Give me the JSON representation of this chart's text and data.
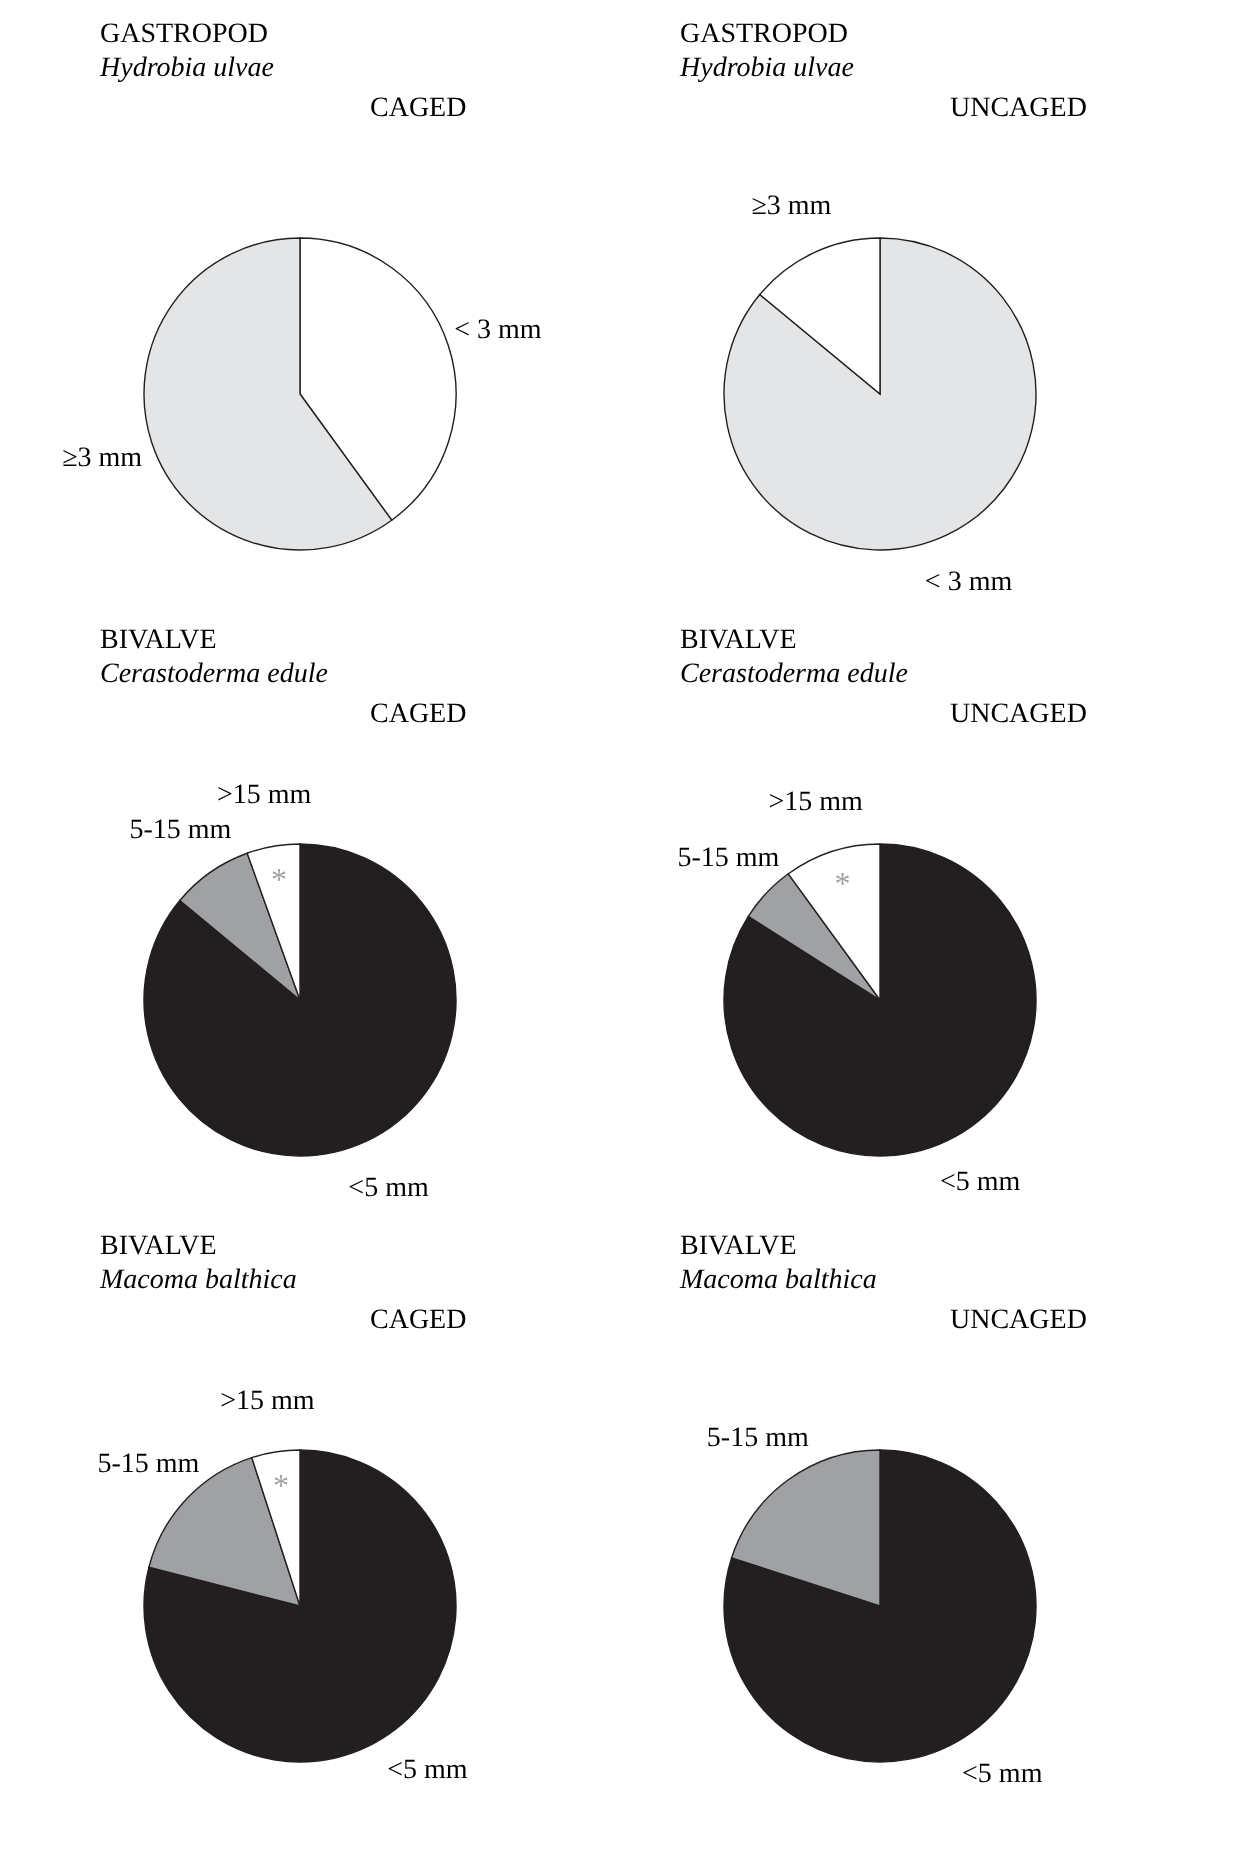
{
  "chart_data": [
    {
      "type": "pie",
      "title": "GASTROPOD",
      "subtitle": "Hydrobia ulvae",
      "annotations": [
        "CAGED"
      ],
      "categories": [
        "< 3 mm",
        "≥3 mm"
      ],
      "values": [
        40,
        60
      ],
      "colors": [
        "#ffffff",
        "#e4e5e7"
      ]
    },
    {
      "type": "pie",
      "title": "GASTROPOD",
      "subtitle": "Hydrobia ulvae",
      "annotations": [
        "UNCAGED"
      ],
      "categories": [
        "< 3 mm",
        "≥3 mm"
      ],
      "values": [
        86,
        14
      ],
      "colors": [
        "#e4e5e7",
        "#ffffff"
      ]
    },
    {
      "type": "pie",
      "title": "BIVALVE",
      "subtitle": "Cerastoderma edule",
      "annotations": [
        "CAGED",
        {
          "text": "*",
          "x": ">15 mm"
        }
      ],
      "categories": [
        "<5 mm",
        "5-15 mm",
        ">15 mm"
      ],
      "values": [
        86,
        8.5,
        5.5
      ],
      "colors": [
        "#231f20",
        "#a0a1a4",
        "#ffffff"
      ]
    },
    {
      "type": "pie",
      "title": "BIVALVE",
      "subtitle": "Cerastoderma edule",
      "annotations": [
        "UNCAGED",
        {
          "text": "*",
          "x": ">15 mm"
        }
      ],
      "categories": [
        "<5 mm",
        "5-15 mm",
        ">15 mm"
      ],
      "values": [
        84,
        6,
        10
      ],
      "colors": [
        "#231f20",
        "#a0a1a4",
        "#ffffff"
      ]
    },
    {
      "type": "pie",
      "title": "BIVALVE",
      "subtitle": "Macoma balthica",
      "annotations": [
        "CAGED",
        {
          "text": "*",
          "x": ">15 mm"
        }
      ],
      "categories": [
        "<5 mm",
        "5-15 mm",
        ">15 mm"
      ],
      "values": [
        79,
        16,
        5
      ],
      "colors": [
        "#231f20",
        "#a0a1a4",
        "#ffffff"
      ]
    },
    {
      "type": "pie",
      "title": "BIVALVE",
      "subtitle": "Macoma balthica",
      "annotations": [
        "UNCAGED"
      ],
      "categories": [
        "<5 mm",
        "5-15 mm"
      ],
      "values": [
        80,
        20
      ],
      "colors": [
        "#231f20",
        "#a0a1a4"
      ]
    }
  ]
}
